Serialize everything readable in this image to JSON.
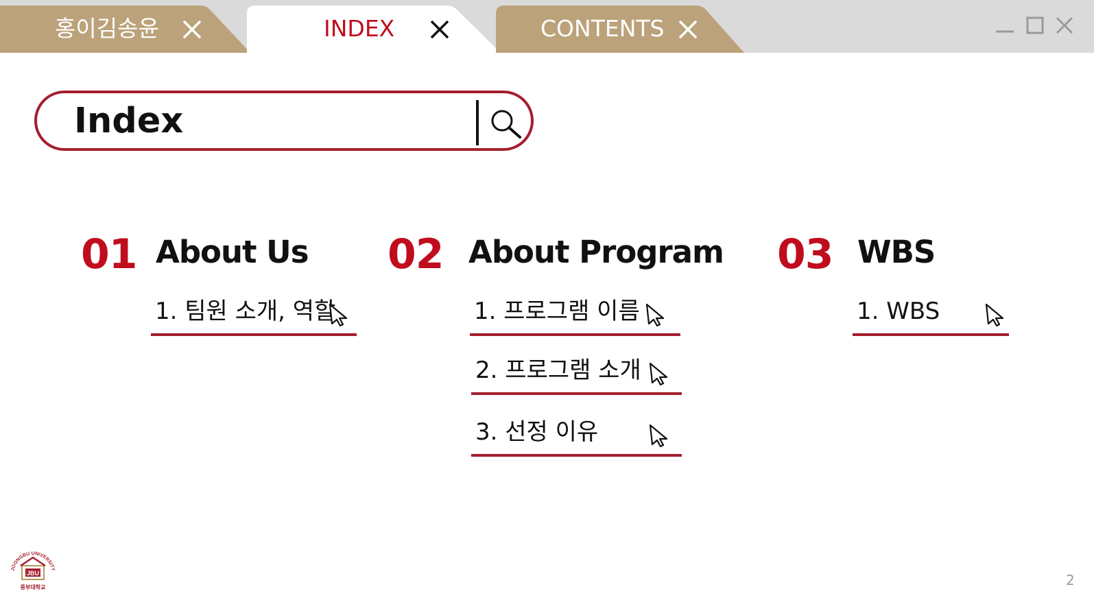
{
  "tabs": [
    {
      "label": "홍이김송윤",
      "active": false
    },
    {
      "label": "INDEX",
      "active": true
    },
    {
      "label": "CONTENTS",
      "active": false
    }
  ],
  "window_controls": [
    "minimize-icon",
    "maximize-icon",
    "close-icon"
  ],
  "search": {
    "value": "Index",
    "button_icon": "search-icon"
  },
  "sections": [
    {
      "number": "01",
      "title": "About Us",
      "items": [
        "1. 팀원 소개, 역할"
      ]
    },
    {
      "number": "02",
      "title": "About Program",
      "items": [
        "1. 프로그램 이름",
        "2. 프로그램 소개",
        "3. 선정 이유"
      ]
    },
    {
      "number": "03",
      "title": "WBS",
      "items": [
        "1. WBS"
      ]
    }
  ],
  "logo": {
    "text_top": "JOONGBU UNIVERSITY",
    "text_center": "JBU",
    "text_bottom": "중부대학교"
  },
  "page_number": "2",
  "colors": {
    "accent": "#c00d1e",
    "underline": "#a41f2f",
    "tab_inactive": "#bba27a",
    "tab_bar": "#dadada"
  }
}
